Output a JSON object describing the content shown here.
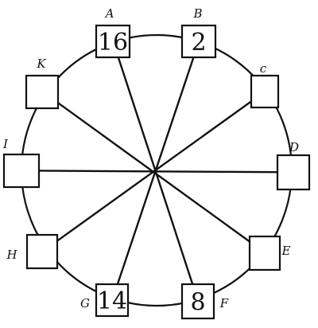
{
  "puzzle": {
    "stations": [
      {
        "id": "A",
        "letter": "A",
        "number": "16"
      },
      {
        "id": "B",
        "letter": "B",
        "number": "2"
      },
      {
        "id": "C",
        "letter": "c",
        "number": ""
      },
      {
        "id": "D",
        "letter": "D",
        "number": ""
      },
      {
        "id": "E",
        "letter": "E",
        "number": ""
      },
      {
        "id": "F",
        "letter": "F",
        "number": "8"
      },
      {
        "id": "G",
        "letter": "G",
        "number": "14"
      },
      {
        "id": "H",
        "letter": "H",
        "number": ""
      },
      {
        "id": "I",
        "letter": "I",
        "number": ""
      },
      {
        "id": "K",
        "letter": "K",
        "number": ""
      }
    ],
    "spokes": [
      [
        "A",
        "F"
      ],
      [
        "B",
        "G"
      ],
      [
        "C",
        "H"
      ],
      [
        "D",
        "I"
      ],
      [
        "E",
        "K"
      ]
    ]
  },
  "colors": {
    "ink": "#111111",
    "paper": "#ffffff"
  }
}
